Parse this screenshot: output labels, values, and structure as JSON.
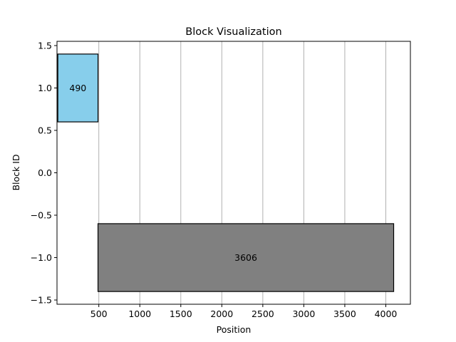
{
  "chart_data": {
    "type": "bar",
    "orientation": "horizontal",
    "title": "Block Visualization",
    "xlabel": "Position",
    "ylabel": "Block ID",
    "xlim": [
      -10,
      4300
    ],
    "ylim": [
      -1.55,
      1.55
    ],
    "xticks": [
      500,
      1000,
      1500,
      2000,
      2500,
      3000,
      3500,
      4000
    ],
    "xtick_labels": [
      "500",
      "1000",
      "1500",
      "2000",
      "2500",
      "3000",
      "3500",
      "4000"
    ],
    "yticks": [
      1.5,
      1.0,
      0.5,
      0.0,
      -0.5,
      -1.0,
      -1.5
    ],
    "ytick_labels": [
      "1.5",
      "1.0",
      "0.5",
      "0.0",
      "−0.5",
      "−1.0",
      "−1.5"
    ],
    "grid": "x",
    "bars": [
      {
        "label": "490",
        "block_id": 1,
        "start": 0,
        "width": 490,
        "height": 0.8,
        "color": "#87ceeb"
      },
      {
        "label": "3606",
        "block_id": -1,
        "start": 490,
        "width": 3606,
        "height": 0.8,
        "color": "#808080"
      }
    ]
  }
}
